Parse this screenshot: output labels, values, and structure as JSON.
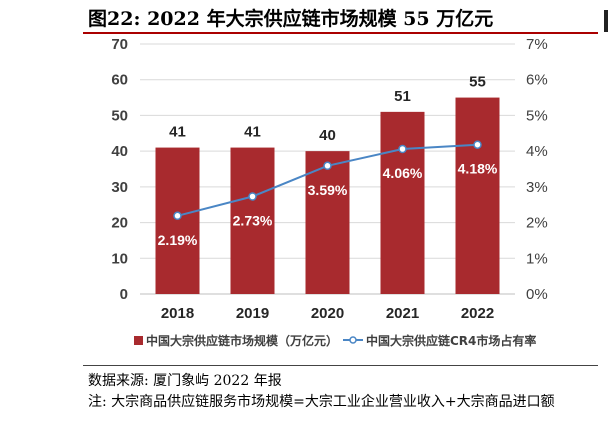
{
  "figure": {
    "title": "图22: 2022 年大宗供应链市场规模 55 万亿元",
    "source": "数据来源: 厦门象屿 2022 年报",
    "note": "注: 大宗商品供应链服务市场规模=大宗工业企业营业收入+大宗商品进口额"
  },
  "colors": {
    "bar": "#a82a2e",
    "line": "#4a86c5",
    "title_rule": "#aa0000"
  },
  "chart_data": {
    "type": "bar",
    "categories": [
      "2018",
      "2019",
      "2020",
      "2021",
      "2022"
    ],
    "series": [
      {
        "name": "中国大宗供应链市场规模（万亿元）",
        "type": "bar",
        "axis": "left",
        "values": [
          41,
          41,
          40,
          51,
          55
        ],
        "labels": [
          "41",
          "41",
          "40",
          "51",
          "55"
        ]
      },
      {
        "name": "中国大宗供应链CR4市场占有率",
        "type": "line",
        "axis": "right",
        "values": [
          2.19,
          2.73,
          3.59,
          4.06,
          4.18
        ],
        "labels": [
          "2.19%",
          "2.73%",
          "3.59%",
          "4.06%",
          "4.18%"
        ]
      }
    ],
    "ylim": [
      0,
      70
    ],
    "yticks": [
      "0",
      "10",
      "20",
      "30",
      "40",
      "50",
      "60",
      "70"
    ],
    "y2lim": [
      0,
      7
    ],
    "y2ticks": [
      "0%",
      "1%",
      "2%",
      "3%",
      "4%",
      "5%",
      "6%",
      "7%"
    ],
    "grid": true,
    "legend": "bottom"
  }
}
